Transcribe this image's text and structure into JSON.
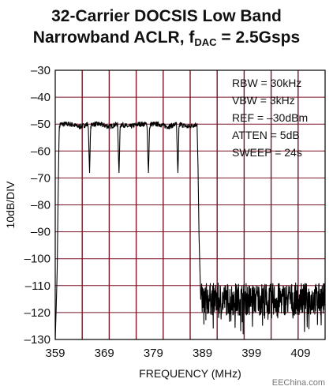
{
  "title_line1": "32-Carrier DOCSIS Low Band",
  "title_line2_prefix": "Narrowband ACLR, f",
  "title_line2_sub": "DAC",
  "title_line2_suffix": " = 2.5Gsps",
  "watermark": "EEChina.com",
  "chart_data": {
    "type": "line",
    "title": "32-Carrier DOCSIS Low Band Narrowband ACLR, fDAC = 2.5Gsps",
    "xlabel": "FREQUENCY (MHz)",
    "ylabel": "10dB/DIV",
    "xlim": [
      359,
      414
    ],
    "ylim": [
      -130,
      -30
    ],
    "x_ticks": [
      359,
      369,
      379,
      389,
      399,
      409
    ],
    "y_ticks": [
      -30,
      -40,
      -50,
      -60,
      -70,
      -80,
      -90,
      -100,
      -110,
      -120,
      -130
    ],
    "grid": true,
    "grid_color": "#7a1426",
    "trace_color": "#000000",
    "settings": [
      "RBW = 30kHz",
      "VBW = 3kHz",
      "REF = –30dBm",
      "ATTEN = 5dB",
      "SWEEP = 24s"
    ],
    "series": [
      {
        "points": [
          [
            359.0,
            -130
          ],
          [
            359.2,
            -118
          ],
          [
            359.4,
            -104
          ],
          [
            359.6,
            -75
          ],
          [
            359.8,
            -52
          ],
          [
            360.0,
            -50
          ],
          [
            362.0,
            -50
          ],
          [
            364.0,
            -51
          ],
          [
            365.7,
            -50
          ],
          [
            365.8,
            -55
          ],
          [
            365.9,
            -62
          ],
          [
            366.0,
            -68
          ],
          [
            366.1,
            -60
          ],
          [
            366.2,
            -52
          ],
          [
            366.4,
            -50
          ],
          [
            368.0,
            -50
          ],
          [
            370.0,
            -51
          ],
          [
            371.7,
            -50
          ],
          [
            371.8,
            -56
          ],
          [
            371.9,
            -63
          ],
          [
            372.0,
            -68
          ],
          [
            372.1,
            -61
          ],
          [
            372.2,
            -52
          ],
          [
            372.4,
            -50
          ],
          [
            374.0,
            -51
          ],
          [
            376.0,
            -50
          ],
          [
            377.7,
            -50
          ],
          [
            377.8,
            -56
          ],
          [
            377.9,
            -63
          ],
          [
            378.0,
            -68
          ],
          [
            378.1,
            -61
          ],
          [
            378.2,
            -52
          ],
          [
            378.4,
            -50
          ],
          [
            380.0,
            -50
          ],
          [
            382.0,
            -51
          ],
          [
            383.7,
            -50
          ],
          [
            383.8,
            -56
          ],
          [
            383.9,
            -63
          ],
          [
            384.0,
            -68
          ],
          [
            384.1,
            -61
          ],
          [
            384.2,
            -52
          ],
          [
            384.4,
            -50
          ],
          [
            386.0,
            -51
          ],
          [
            387.9,
            -50
          ],
          [
            388.1,
            -66
          ],
          [
            388.3,
            -91
          ],
          [
            388.6,
            -112
          ],
          [
            389.0,
            -114
          ],
          [
            394.0,
            -115
          ],
          [
            400.0,
            -114
          ],
          [
            406.0,
            -115
          ],
          [
            410.0,
            -114
          ],
          [
            414.0,
            -115
          ]
        ]
      }
    ],
    "noise_floor_dbm": -115,
    "noise_floor_start_mhz": 388.6
  }
}
